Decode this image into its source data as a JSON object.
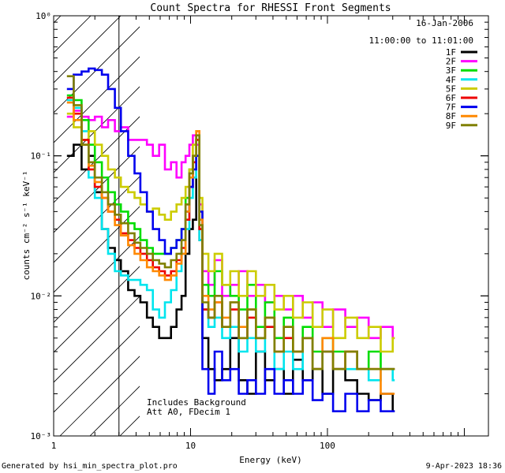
{
  "chart_data": {
    "type": "line",
    "title": "Count Spectra for RHESSI Front Segments",
    "xlabel": "Energy (keV)",
    "ylabel": "counts cm⁻² s⁻¹ keV⁻¹",
    "x_scale": "log",
    "y_scale": "log",
    "xlim": [
      1.0,
      1500.0
    ],
    "ylim": [
      0.001,
      1.0
    ],
    "x_ticks": [
      {
        "value": 1,
        "label": "1"
      },
      {
        "value": 10,
        "label": "10"
      },
      {
        "value": 100,
        "label": "100"
      }
    ],
    "y_ticks": [
      {
        "value": 1,
        "label": "10⁰"
      },
      {
        "value": 0.1,
        "label": "10⁻¹"
      },
      {
        "value": 0.01,
        "label": "10⁻²"
      },
      {
        "value": 0.001,
        "label": "10⁻³"
      }
    ],
    "hatched_region_max_keV": 3.0,
    "header_date": "16-Jan-2006",
    "header_time": "11:00:00 to 11:01:00",
    "annotations": [
      "Includes Background",
      "Att A0, FDecim 1"
    ],
    "legend_position": "top-right",
    "series": [
      {
        "name": "1F",
        "color": "#000000",
        "values": [
          0.1,
          0.12,
          0.08,
          0.1,
          0.055,
          0.03,
          0.022,
          0.018,
          0.015,
          0.011,
          0.01,
          0.009,
          0.007,
          0.006,
          0.005,
          0.005,
          0.006,
          0.008,
          0.01,
          0.02,
          0.03,
          0.035,
          0.1,
          0.025,
          0.005,
          0.003,
          0.0025,
          0.003,
          0.005,
          0.0025,
          0.002,
          0.004,
          0.0025,
          0.003,
          0.002,
          0.0035,
          0.0025,
          0.003,
          0.002,
          0.003,
          0.0025,
          0.002,
          0.0018,
          0.002,
          0.0015
        ]
      },
      {
        "name": "2F",
        "color": "#ff00ff",
        "values": [
          0.19,
          0.21,
          0.19,
          0.18,
          0.19,
          0.16,
          0.18,
          0.15,
          0.16,
          0.13,
          0.13,
          0.13,
          0.12,
          0.1,
          0.12,
          0.08,
          0.09,
          0.07,
          0.09,
          0.1,
          0.12,
          0.14,
          0.12,
          0.045,
          0.015,
          0.012,
          0.018,
          0.01,
          0.012,
          0.015,
          0.01,
          0.012,
          0.009,
          0.01,
          0.008,
          0.01,
          0.007,
          0.009,
          0.006,
          0.008,
          0.006,
          0.007,
          0.005,
          0.006,
          0.005
        ]
      },
      {
        "name": "3F",
        "color": "#00dd00",
        "values": [
          0.27,
          0.25,
          0.18,
          0.12,
          0.09,
          0.07,
          0.055,
          0.045,
          0.04,
          0.033,
          0.03,
          0.025,
          0.022,
          0.02,
          0.02,
          0.02,
          0.022,
          0.025,
          0.03,
          0.05,
          0.08,
          0.1,
          0.13,
          0.03,
          0.012,
          0.01,
          0.015,
          0.012,
          0.01,
          0.008,
          0.012,
          0.006,
          0.009,
          0.005,
          0.007,
          0.004,
          0.006,
          0.004,
          0.005,
          0.004,
          0.004,
          0.003,
          0.004,
          0.003,
          0.003
        ]
      },
      {
        "name": "4F",
        "color": "#00e5ee",
        "values": [
          0.25,
          0.22,
          0.15,
          0.07,
          0.05,
          0.03,
          0.02,
          0.015,
          0.014,
          0.013,
          0.013,
          0.012,
          0.011,
          0.008,
          0.007,
          0.009,
          0.011,
          0.015,
          0.02,
          0.03,
          0.05,
          0.07,
          0.1,
          0.025,
          0.008,
          0.006,
          0.007,
          0.005,
          0.006,
          0.004,
          0.005,
          0.004,
          0.006,
          0.003,
          0.004,
          0.003,
          0.005,
          0.003,
          0.004,
          0.003,
          0.003,
          0.003,
          0.0025,
          0.003,
          0.0025
        ]
      },
      {
        "name": "5F",
        "color": "#cccc00",
        "values": [
          0.2,
          0.16,
          0.13,
          0.15,
          0.12,
          0.1,
          0.08,
          0.07,
          0.06,
          0.055,
          0.05,
          0.045,
          0.04,
          0.042,
          0.038,
          0.035,
          0.04,
          0.045,
          0.05,
          0.06,
          0.08,
          0.12,
          0.15,
          0.05,
          0.02,
          0.015,
          0.02,
          0.012,
          0.015,
          0.01,
          0.015,
          0.01,
          0.012,
          0.008,
          0.01,
          0.007,
          0.009,
          0.006,
          0.008,
          0.005,
          0.007,
          0.005,
          0.006,
          0.004,
          0.005
        ]
      },
      {
        "name": "6F",
        "color": "#ee0000",
        "values": [
          0.26,
          0.2,
          0.13,
          0.08,
          0.06,
          0.05,
          0.04,
          0.035,
          0.028,
          0.025,
          0.022,
          0.02,
          0.018,
          0.016,
          0.015,
          0.014,
          0.015,
          0.018,
          0.022,
          0.035,
          0.06,
          0.09,
          0.13,
          0.03,
          0.008,
          0.007,
          0.009,
          0.006,
          0.008,
          0.005,
          0.007,
          0.005,
          0.006,
          0.004,
          0.005,
          0.004,
          0.005,
          0.003,
          0.004,
          0.003,
          0.004,
          0.003,
          0.003,
          0.003,
          0.003
        ]
      },
      {
        "name": "7F",
        "color": "#0000ee",
        "values": [
          0.3,
          0.38,
          0.4,
          0.42,
          0.41,
          0.38,
          0.3,
          0.22,
          0.15,
          0.1,
          0.075,
          0.055,
          0.04,
          0.03,
          0.025,
          0.02,
          0.022,
          0.025,
          0.03,
          0.04,
          0.06,
          0.08,
          0.1,
          0.04,
          0.003,
          0.002,
          0.004,
          0.0025,
          0.003,
          0.002,
          0.0025,
          0.002,
          0.003,
          0.002,
          0.0025,
          0.002,
          0.0025,
          0.0018,
          0.002,
          0.0015,
          0.002,
          0.0015,
          0.0018,
          0.0015,
          0.0015
        ]
      },
      {
        "name": "8F",
        "color": "#ff8800",
        "values": [
          0.24,
          0.18,
          0.12,
          0.085,
          0.065,
          0.05,
          0.04,
          0.032,
          0.027,
          0.023,
          0.02,
          0.018,
          0.016,
          0.015,
          0.014,
          0.013,
          0.014,
          0.017,
          0.02,
          0.04,
          0.07,
          0.1,
          0.15,
          0.035,
          0.01,
          0.008,
          0.009,
          0.007,
          0.009,
          0.006,
          0.008,
          0.005,
          0.007,
          0.004,
          0.006,
          0.004,
          0.005,
          0.003,
          0.005,
          0.003,
          0.004,
          0.003,
          0.003,
          0.002,
          0.002
        ]
      },
      {
        "name": "9F",
        "color": "#808000",
        "values": [
          0.37,
          0.23,
          0.12,
          0.09,
          0.07,
          0.055,
          0.045,
          0.038,
          0.033,
          0.028,
          0.024,
          0.022,
          0.02,
          0.018,
          0.017,
          0.016,
          0.018,
          0.02,
          0.025,
          0.045,
          0.075,
          0.1,
          0.14,
          0.032,
          0.009,
          0.007,
          0.01,
          0.006,
          0.009,
          0.005,
          0.008,
          0.005,
          0.007,
          0.004,
          0.006,
          0.004,
          0.005,
          0.003,
          0.004,
          0.003,
          0.004,
          0.003,
          0.003,
          0.003,
          0.003
        ]
      }
    ],
    "energy_edges_keV": [
      1.25,
      1.4,
      1.6,
      1.8,
      2.0,
      2.25,
      2.5,
      2.8,
      3.1,
      3.5,
      3.9,
      4.3,
      4.8,
      5.3,
      5.9,
      6.5,
      7.2,
      7.9,
      8.6,
      9.2,
      9.8,
      10.4,
      11.0,
      11.6,
      12.2,
      13.5,
      15.0,
      17.0,
      19.5,
      22.5,
      26.0,
      30.0,
      35.0,
      41.0,
      48.0,
      56.0,
      66.0,
      78.0,
      92.0,
      110.0,
      135.0,
      165.0,
      200.0,
      245.0,
      300.0,
      310.0
    ]
  },
  "footer": {
    "left": "Generated by hsi_min_spectra_plot.pro",
    "right": "9-Apr-2023 18:36"
  }
}
